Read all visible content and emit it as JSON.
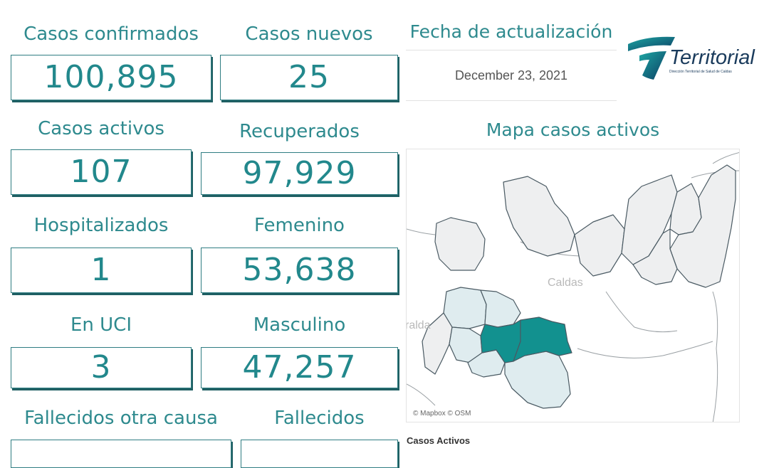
{
  "metrics": {
    "confirmados": {
      "label": "Casos confirmados",
      "value": "100,895"
    },
    "nuevos": {
      "label": "Casos nuevos",
      "value": "25"
    },
    "activos": {
      "label": "Casos activos",
      "value": "107"
    },
    "recuperados": {
      "label": "Recuperados",
      "value": "97,929"
    },
    "hospitalizados": {
      "label": "Hospitalizados",
      "value": "1"
    },
    "femenino": {
      "label": "Femenino",
      "value": "53,638"
    },
    "uci": {
      "label": "En UCI",
      "value": "3"
    },
    "masculino": {
      "label": "Masculino",
      "value": "47,257"
    },
    "fallecidos_otra": {
      "label": "Fallecidos otra causa"
    },
    "fallecidos": {
      "label": "Fallecidos"
    }
  },
  "update": {
    "label": "Fecha de actualización",
    "date": "December 23, 2021"
  },
  "logo": {
    "name": "Territorial",
    "tagline": "Dirección Territorial de Salud de Caldas"
  },
  "map": {
    "title": "Mapa casos activos",
    "place_caldas": "Caldas",
    "place_left": "ralda",
    "attribution": "© Mapbox © OSM",
    "colors": {
      "active": "#12918f",
      "light": "#dfecef",
      "none": "#eeeff0",
      "border": "#4a5a63"
    }
  },
  "legend": {
    "title": "Casos Activos"
  }
}
